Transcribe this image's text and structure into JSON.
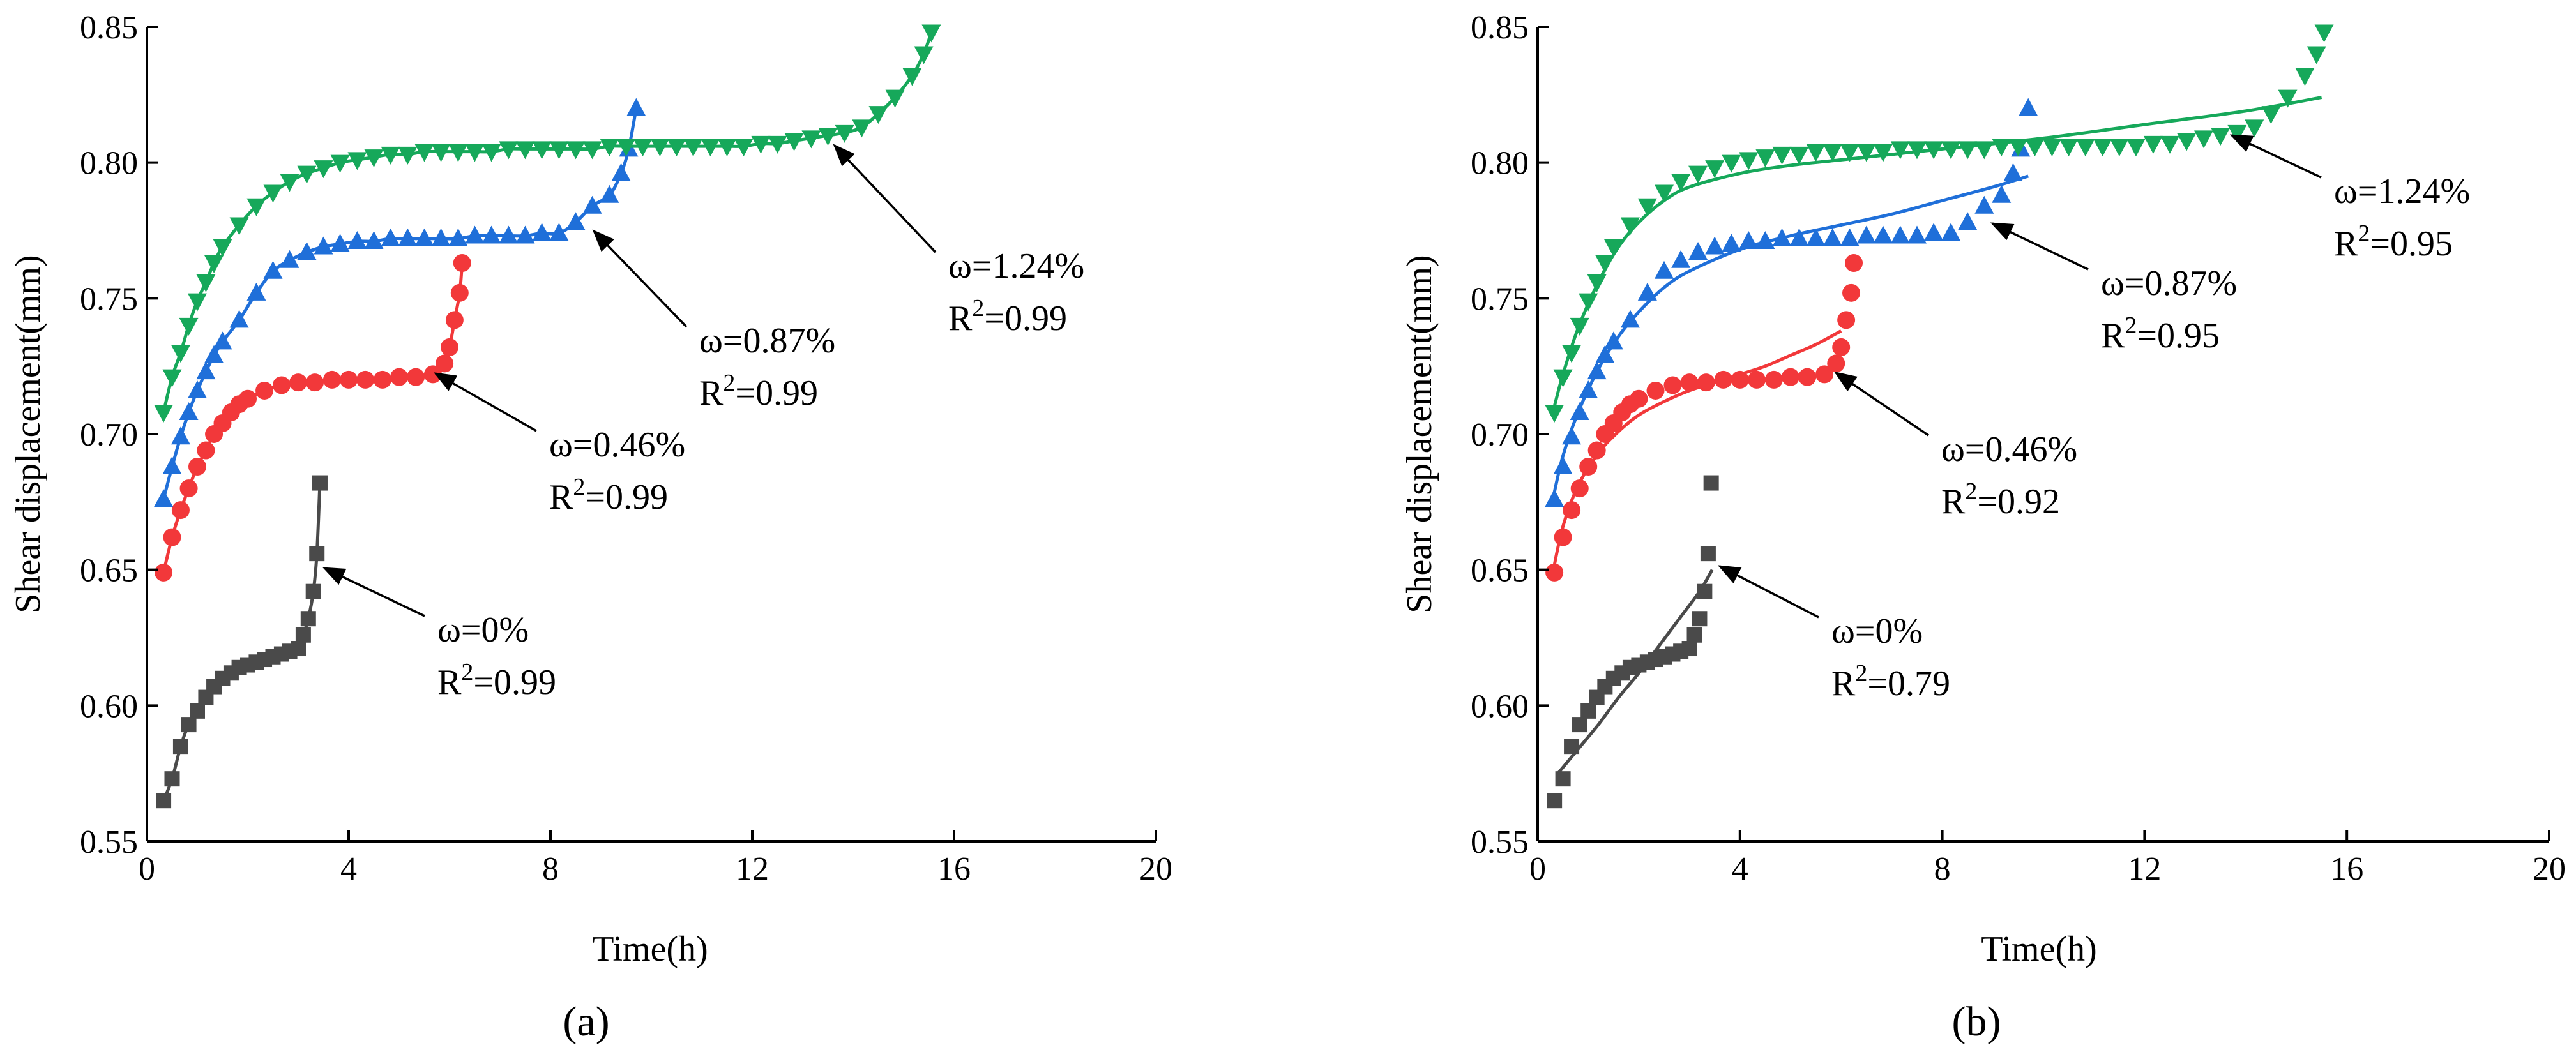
{
  "figure": {
    "panel_labels": [
      "(a)",
      "(b)"
    ]
  },
  "colors": {
    "w0": "#4a4a4a",
    "w046": "#f2383a",
    "w087": "#1f6fd9",
    "w124": "#16a85a"
  },
  "chart_data": [
    {
      "type": "scatter",
      "panel": "(a)",
      "xlabel": "Time(h)",
      "ylabel": "Shear displacement(mm)",
      "xlim": [
        0,
        20
      ],
      "ylim": [
        0.55,
        0.85
      ],
      "xticks": [
        0,
        4,
        8,
        12,
        16,
        20
      ],
      "yticks": [
        0.55,
        0.6,
        0.65,
        0.7,
        0.75,
        0.8,
        0.85
      ],
      "fit": "tracking",
      "series": [
        {
          "name": "ω=0%",
          "r2": "0.99",
          "color_key": "w0",
          "marker": "square",
          "x": [
            0.33,
            0.5,
            0.67,
            0.83,
            1.0,
            1.17,
            1.33,
            1.5,
            1.67,
            1.83,
            2.0,
            2.17,
            2.33,
            2.5,
            2.67,
            2.83,
            3.0,
            3.1,
            3.2,
            3.3,
            3.37,
            3.43
          ],
          "y": [
            0.565,
            0.573,
            0.585,
            0.593,
            0.598,
            0.603,
            0.607,
            0.61,
            0.612,
            0.614,
            0.615,
            0.616,
            0.617,
            0.618,
            0.619,
            0.62,
            0.621,
            0.626,
            0.632,
            0.642,
            0.656,
            0.682
          ]
        },
        {
          "name": "ω=0.46%",
          "r2": "0.99",
          "color_key": "w046",
          "marker": "circle",
          "x": [
            0.33,
            0.5,
            0.67,
            0.83,
            1.0,
            1.17,
            1.33,
            1.5,
            1.67,
            1.83,
            2.0,
            2.33,
            2.67,
            3.0,
            3.33,
            3.67,
            4.0,
            4.33,
            4.67,
            5.0,
            5.33,
            5.67,
            5.9,
            6.0,
            6.1,
            6.2,
            6.25
          ],
          "y": [
            0.649,
            0.662,
            0.672,
            0.68,
            0.688,
            0.694,
            0.7,
            0.704,
            0.708,
            0.711,
            0.713,
            0.716,
            0.718,
            0.719,
            0.719,
            0.72,
            0.72,
            0.72,
            0.72,
            0.721,
            0.721,
            0.722,
            0.726,
            0.732,
            0.742,
            0.752,
            0.763
          ]
        },
        {
          "name": "ω=0.87%",
          "r2": "0.99",
          "color_key": "w087",
          "marker": "triangle-up",
          "x": [
            0.33,
            0.5,
            0.67,
            0.83,
            1.0,
            1.17,
            1.33,
            1.5,
            1.83,
            2.17,
            2.5,
            2.83,
            3.17,
            3.5,
            3.83,
            4.17,
            4.5,
            4.83,
            5.17,
            5.5,
            5.83,
            6.17,
            6.5,
            6.83,
            7.17,
            7.5,
            7.83,
            8.17,
            8.5,
            8.83,
            9.17,
            9.4,
            9.55,
            9.7
          ],
          "y": [
            0.676,
            0.688,
            0.699,
            0.708,
            0.716,
            0.723,
            0.729,
            0.734,
            0.742,
            0.752,
            0.76,
            0.764,
            0.767,
            0.769,
            0.77,
            0.771,
            0.771,
            0.772,
            0.772,
            0.772,
            0.772,
            0.772,
            0.773,
            0.773,
            0.773,
            0.773,
            0.774,
            0.774,
            0.778,
            0.784,
            0.788,
            0.796,
            0.805,
            0.82
          ]
        },
        {
          "name": "ω=1.24%",
          "r2": "0.99",
          "color_key": "w124",
          "marker": "triangle-down",
          "x": [
            0.33,
            0.5,
            0.67,
            0.83,
            1.0,
            1.17,
            1.33,
            1.5,
            1.83,
            2.17,
            2.5,
            2.83,
            3.17,
            3.5,
            3.83,
            4.17,
            4.5,
            4.83,
            5.17,
            5.5,
            5.83,
            6.17,
            6.5,
            6.83,
            7.17,
            7.5,
            7.83,
            8.17,
            8.5,
            8.83,
            9.17,
            9.5,
            9.83,
            10.17,
            10.5,
            10.83,
            11.17,
            11.5,
            11.83,
            12.17,
            12.5,
            12.83,
            13.17,
            13.5,
            13.83,
            14.17,
            14.5,
            14.83,
            15.17,
            15.4,
            15.55
          ],
          "y": [
            0.708,
            0.721,
            0.73,
            0.74,
            0.749,
            0.756,
            0.763,
            0.769,
            0.777,
            0.784,
            0.789,
            0.793,
            0.796,
            0.798,
            0.8,
            0.801,
            0.802,
            0.803,
            0.803,
            0.804,
            0.804,
            0.804,
            0.804,
            0.804,
            0.805,
            0.805,
            0.805,
            0.805,
            0.805,
            0.805,
            0.806,
            0.806,
            0.806,
            0.806,
            0.806,
            0.806,
            0.806,
            0.806,
            0.806,
            0.807,
            0.807,
            0.808,
            0.809,
            0.81,
            0.811,
            0.813,
            0.818,
            0.824,
            0.832,
            0.84,
            0.848
          ]
        }
      ]
    },
    {
      "type": "scatter",
      "panel": "(b)",
      "xlabel": "Time(h)",
      "ylabel": "Shear displacement(mm)",
      "xlim": [
        0,
        20
      ],
      "ylim": [
        0.55,
        0.85
      ],
      "xticks": [
        0,
        4,
        8,
        12,
        16,
        20
      ],
      "yticks": [
        0.55,
        0.6,
        0.65,
        0.7,
        0.75,
        0.8,
        0.85
      ],
      "fit": "smooth",
      "series": [
        {
          "name": "ω=0%",
          "r2": "0.79",
          "color_key": "w0",
          "marker": "square",
          "x": [
            0.33,
            0.5,
            0.67,
            0.83,
            1.0,
            1.17,
            1.33,
            1.5,
            1.67,
            1.83,
            2.0,
            2.17,
            2.33,
            2.5,
            2.67,
            2.83,
            3.0,
            3.1,
            3.2,
            3.3,
            3.37,
            3.43
          ],
          "y": [
            0.565,
            0.573,
            0.585,
            0.593,
            0.598,
            0.603,
            0.607,
            0.61,
            0.612,
            0.614,
            0.615,
            0.616,
            0.617,
            0.618,
            0.619,
            0.62,
            0.621,
            0.626,
            0.632,
            0.642,
            0.656,
            0.682
          ],
          "fit_x": [
            0.4,
            0.8,
            1.2,
            1.6,
            2.0,
            2.4,
            2.8,
            3.2,
            3.45
          ],
          "fit_y": [
            0.575,
            0.584,
            0.593,
            0.603,
            0.612,
            0.622,
            0.632,
            0.642,
            0.65
          ]
        },
        {
          "name": "ω=0.46%",
          "r2": "0.92",
          "color_key": "w046",
          "marker": "circle",
          "x": [
            0.33,
            0.5,
            0.67,
            0.83,
            1.0,
            1.17,
            1.33,
            1.5,
            1.67,
            1.83,
            2.0,
            2.33,
            2.67,
            3.0,
            3.33,
            3.67,
            4.0,
            4.33,
            4.67,
            5.0,
            5.33,
            5.67,
            5.9,
            6.0,
            6.1,
            6.2,
            6.25
          ],
          "y": [
            0.649,
            0.662,
            0.672,
            0.68,
            0.688,
            0.694,
            0.7,
            0.704,
            0.708,
            0.711,
            0.713,
            0.716,
            0.718,
            0.719,
            0.719,
            0.72,
            0.72,
            0.72,
            0.72,
            0.721,
            0.721,
            0.722,
            0.726,
            0.732,
            0.742,
            0.752,
            0.763
          ],
          "fit_x": [
            0.3,
            0.5,
            0.8,
            1.2,
            1.6,
            2.0,
            2.5,
            3.0,
            3.5,
            4.0,
            4.5,
            5.0,
            5.5,
            6.0
          ],
          "fit_y": [
            0.649,
            0.666,
            0.681,
            0.693,
            0.701,
            0.707,
            0.712,
            0.716,
            0.719,
            0.722,
            0.725,
            0.729,
            0.733,
            0.738
          ]
        },
        {
          "name": "ω=0.87%",
          "r2": "0.95",
          "color_key": "w087",
          "marker": "triangle-up",
          "x": [
            0.33,
            0.5,
            0.67,
            0.83,
            1.0,
            1.17,
            1.33,
            1.5,
            1.83,
            2.17,
            2.5,
            2.83,
            3.17,
            3.5,
            3.83,
            4.17,
            4.5,
            4.83,
            5.17,
            5.5,
            5.83,
            6.17,
            6.5,
            6.83,
            7.17,
            7.5,
            7.83,
            8.17,
            8.5,
            8.83,
            9.17,
            9.4,
            9.55,
            9.7
          ],
          "y": [
            0.676,
            0.688,
            0.699,
            0.708,
            0.716,
            0.723,
            0.729,
            0.734,
            0.742,
            0.752,
            0.76,
            0.764,
            0.767,
            0.769,
            0.77,
            0.771,
            0.771,
            0.772,
            0.772,
            0.772,
            0.772,
            0.772,
            0.773,
            0.773,
            0.773,
            0.773,
            0.774,
            0.774,
            0.778,
            0.784,
            0.788,
            0.796,
            0.805,
            0.82
          ],
          "fit_x": [
            0.3,
            0.5,
            0.8,
            1.2,
            1.6,
            2.0,
            2.5,
            3.0,
            4.0,
            5.0,
            6.0,
            7.0,
            8.0,
            9.0,
            9.7
          ],
          "fit_y": [
            0.676,
            0.692,
            0.708,
            0.724,
            0.736,
            0.745,
            0.754,
            0.76,
            0.768,
            0.773,
            0.777,
            0.781,
            0.786,
            0.791,
            0.795
          ]
        },
        {
          "name": "ω=1.24%",
          "r2": "0.95",
          "color_key": "w124",
          "marker": "triangle-down",
          "x": [
            0.33,
            0.5,
            0.67,
            0.83,
            1.0,
            1.17,
            1.33,
            1.5,
            1.83,
            2.17,
            2.5,
            2.83,
            3.17,
            3.5,
            3.83,
            4.17,
            4.5,
            4.83,
            5.17,
            5.5,
            5.83,
            6.17,
            6.5,
            6.83,
            7.17,
            7.5,
            7.83,
            8.17,
            8.5,
            8.83,
            9.17,
            9.5,
            9.83,
            10.17,
            10.5,
            10.83,
            11.17,
            11.5,
            11.83,
            12.17,
            12.5,
            12.83,
            13.17,
            13.5,
            13.83,
            14.17,
            14.5,
            14.83,
            15.17,
            15.4,
            15.55
          ],
          "y": [
            0.708,
            0.721,
            0.73,
            0.74,
            0.749,
            0.756,
            0.763,
            0.769,
            0.777,
            0.784,
            0.789,
            0.793,
            0.796,
            0.798,
            0.8,
            0.801,
            0.802,
            0.803,
            0.803,
            0.804,
            0.804,
            0.804,
            0.804,
            0.804,
            0.805,
            0.805,
            0.805,
            0.805,
            0.805,
            0.805,
            0.806,
            0.806,
            0.806,
            0.806,
            0.806,
            0.806,
            0.806,
            0.806,
            0.806,
            0.807,
            0.807,
            0.808,
            0.809,
            0.81,
            0.811,
            0.813,
            0.818,
            0.824,
            0.832,
            0.84,
            0.848
          ],
          "fit_x": [
            0.3,
            0.5,
            0.8,
            1.2,
            1.6,
            2.0,
            2.5,
            3.0,
            4.0,
            5.0,
            6.0,
            8.0,
            10.0,
            12.0,
            14.0,
            15.5
          ],
          "fit_y": [
            0.708,
            0.722,
            0.739,
            0.756,
            0.769,
            0.778,
            0.786,
            0.791,
            0.796,
            0.799,
            0.801,
            0.805,
            0.809,
            0.814,
            0.819,
            0.824
          ]
        }
      ]
    }
  ]
}
